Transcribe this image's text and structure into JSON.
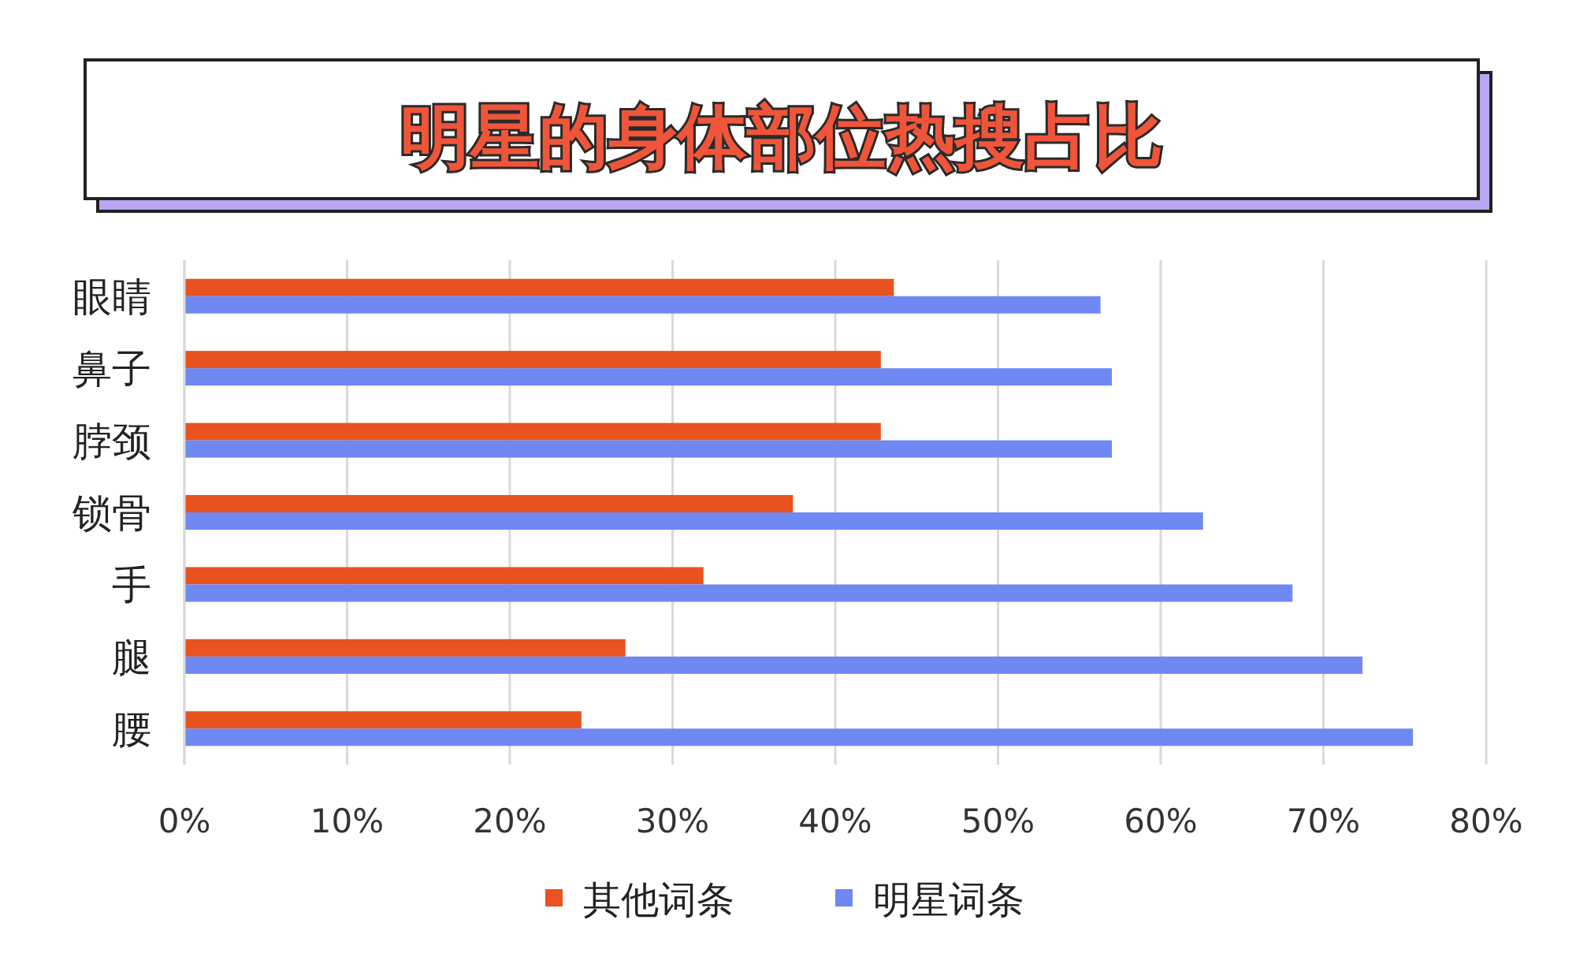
{
  "chart_data": {
    "type": "bar",
    "orientation": "horizontal",
    "title": "明星的身体部位热搜占比",
    "categories": [
      "眼睛",
      "鼻子",
      "脖颈",
      "锁骨",
      "手",
      "腿",
      "腰"
    ],
    "series": [
      {
        "name": "其他词条",
        "color": "#e8531f",
        "values": [
          43.6,
          42.8,
          42.8,
          37.4,
          31.9,
          27.1,
          24.4
        ]
      },
      {
        "name": "明星词条",
        "color": "#7088f2",
        "values": [
          56.3,
          57.0,
          57.0,
          62.6,
          68.1,
          72.4,
          75.5
        ]
      }
    ],
    "xlim": [
      0,
      80
    ],
    "xticks": [
      {
        "value": 0,
        "label": "0%"
      },
      {
        "value": 10,
        "label": "10%"
      },
      {
        "value": 20,
        "label": "20%"
      },
      {
        "value": 30,
        "label": "30%"
      },
      {
        "value": 40,
        "label": "40%"
      },
      {
        "value": 50,
        "label": "50%"
      },
      {
        "value": 60,
        "label": "60%"
      },
      {
        "value": 70,
        "label": "70%"
      },
      {
        "value": 80,
        "label": "80%"
      }
    ],
    "grid": "x",
    "legend": "bottom"
  }
}
